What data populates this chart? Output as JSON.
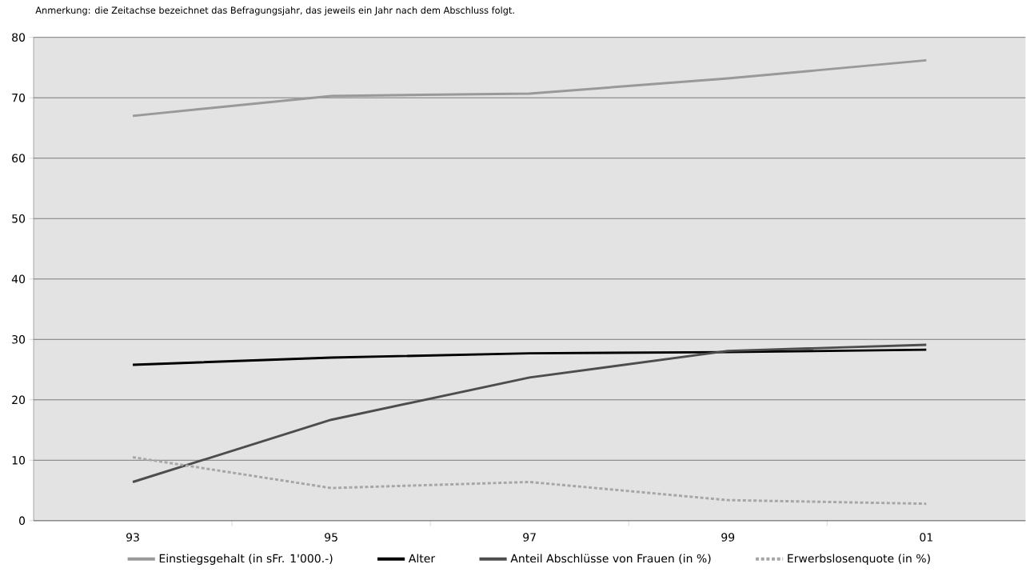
{
  "chart_data": {
    "type": "line",
    "annotations": [
      "Anmerkung: die Zeitachse bezeichnet das Befragungsjahr, das jeweils ein Jahr nach dem Abschluss folgt."
    ],
    "categories": [
      "93",
      "95",
      "97",
      "99",
      "01"
    ],
    "series": [
      {
        "name": "Einstiegsgehalt (in sFr. 1'000.-)",
        "color": "#999999",
        "values": [
          67.0,
          70.3,
          70.7,
          73.2,
          76.2
        ]
      },
      {
        "name": "Alter",
        "color": "#000000",
        "values": [
          25.8,
          27.0,
          27.7,
          27.9,
          28.3
        ]
      },
      {
        "name": "Anteil Abschlüsse von Frauen (in %)",
        "color": "#4d4d4d",
        "values": [
          6.4,
          16.7,
          23.7,
          28.1,
          29.1
        ]
      },
      {
        "name": "Erwerbslosenquote (in %)",
        "color": "#a6a6a6",
        "line_style": "dotted",
        "values": [
          10.5,
          5.4,
          6.4,
          3.4,
          2.8
        ]
      }
    ],
    "ylim": [
      0,
      80
    ],
    "yticks": [
      0,
      10,
      20,
      30,
      40,
      50,
      60,
      70,
      80
    ],
    "grid": "y",
    "legend": "bottom",
    "marker": "none"
  }
}
